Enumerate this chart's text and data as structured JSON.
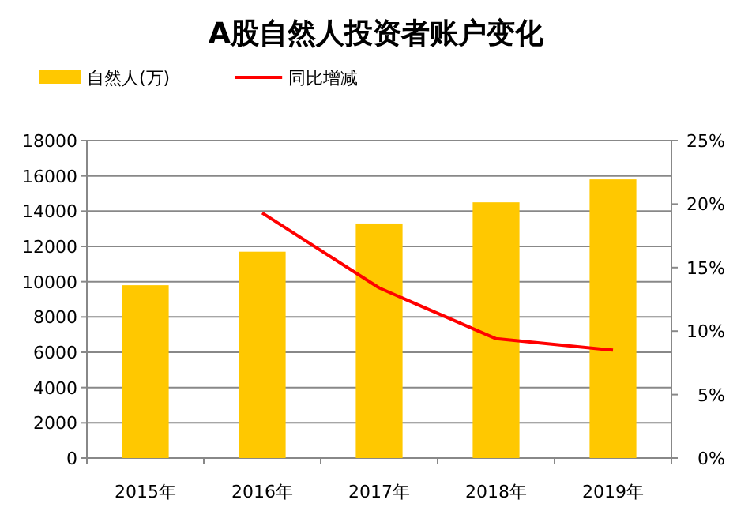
{
  "chart_data": {
    "type": "bar",
    "title": "A股自然人投资者账户变化",
    "categories": [
      "2015年",
      "2016年",
      "2017年",
      "2018年",
      "2019年"
    ],
    "series": [
      {
        "name": "自然人(万)",
        "color": "#ffc800",
        "values": [
          9800,
          11700,
          13300,
          14500,
          15800
        ]
      },
      {
        "name": "同比增减",
        "type": "line",
        "axis": "y2",
        "color": "#ff0000",
        "values": [
          null,
          19.3,
          13.4,
          9.4,
          8.5
        ]
      }
    ],
    "ylim": [
      0,
      18000
    ],
    "yticks": [
      0,
      2000,
      4000,
      6000,
      8000,
      10000,
      12000,
      14000,
      16000,
      18000
    ],
    "y2lim": [
      0,
      25
    ],
    "y2ticks": [
      {
        "value": 0,
        "label": "0%"
      },
      {
        "value": 5,
        "label": "5%"
      },
      {
        "value": 10,
        "label": "10%"
      },
      {
        "value": 15,
        "label": "15%"
      },
      {
        "value": 20,
        "label": "20%"
      },
      {
        "value": 25,
        "label": "25%"
      }
    ],
    "grid": "y",
    "legend": "top left",
    "marker": "none"
  }
}
